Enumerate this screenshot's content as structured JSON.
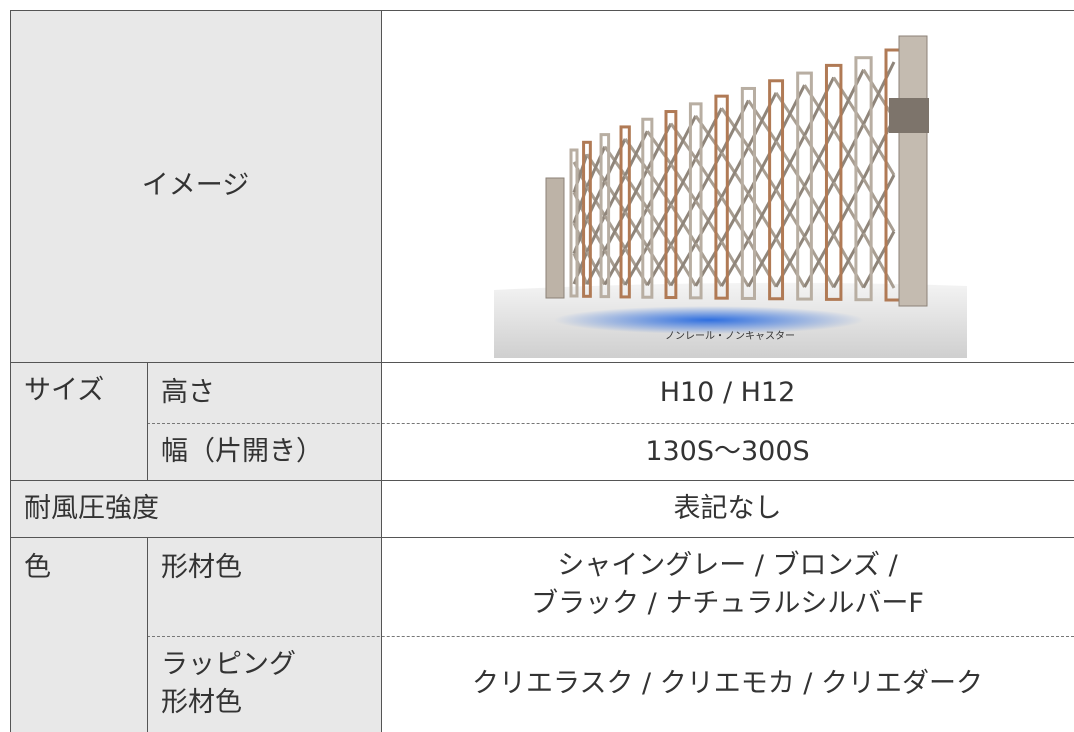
{
  "table": {
    "rows": [
      {
        "label": "イメージ",
        "image_caption": "ノンレール・ノンキャスター"
      },
      {
        "label": "サイズ",
        "sub": [
          {
            "label": "高さ",
            "value": "H10 / H12"
          },
          {
            "label": "幅（片開き）",
            "value": "130S〜300S"
          }
        ]
      },
      {
        "label": "耐風圧強度",
        "value": "表記なし"
      },
      {
        "label": "色",
        "sub": [
          {
            "label": "形材色",
            "value": [
              "シャイングレー / ブロンズ /",
              "ブラック / ナチュラルシルバーF"
            ]
          },
          {
            "label": [
              "ラッピング",
              "形材色"
            ],
            "value": "クリエラスク / クリエモカ / クリエダーク"
          }
        ]
      }
    ]
  }
}
